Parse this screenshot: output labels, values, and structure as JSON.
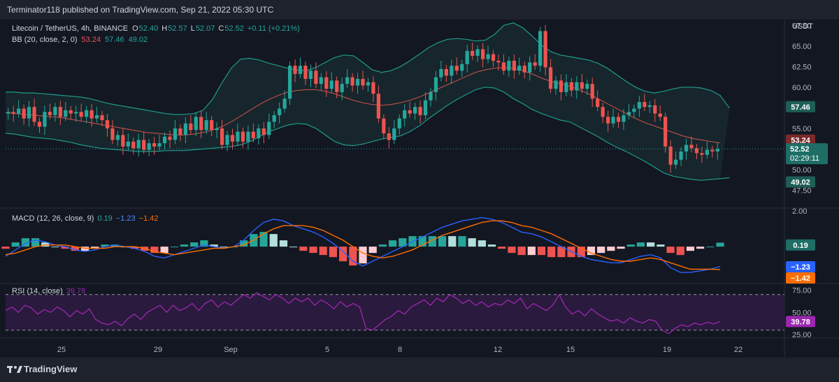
{
  "header": {
    "publisher": "Terminator118 published on TradingView.com, Sep 21, 2022 05:30 UTC"
  },
  "footer": {
    "brand": "TradingView",
    "logo_icon": "tradingview-logo-icon"
  },
  "colors": {
    "up": "#26a69a",
    "down": "#ef5350",
    "bb_basis": "#b74b4b",
    "bb_band": "#1f9a8a",
    "macd_line": "#2962ff",
    "signal_line": "#ff6d00",
    "rsi": "#9c27b0",
    "rsi_fill": "#2a1a3d"
  },
  "chart_data": {
    "type": "candlestick",
    "legend": {
      "symbol": "Litecoin / TetherUS, 4h, BINANCE",
      "o_label": "O",
      "o": "52.40",
      "h_label": "H",
      "h": "52.57",
      "l_label": "L",
      "l": "52.07",
      "c_label": "C",
      "c": "52.52",
      "change": "+0.11 (+0.21%)",
      "bb_label": "BB (20, close, 2, 0)",
      "bb_basis": "53.24",
      "bb_upper": "57.46",
      "bb_lower": "49.02"
    },
    "price_axis": {
      "unit": "USDT",
      "ticks": [
        "67.50",
        "65.00",
        "62.50",
        "60.00",
        "55.00",
        "50.00",
        "47.50"
      ],
      "ylim": [
        45.5,
        68.2
      ],
      "badges": {
        "upper": "57.46",
        "basis": "53.24",
        "last": "52.52",
        "countdown": "02:29:11",
        "lower": "49.02"
      }
    },
    "x_axis": {
      "labels": [
        "25",
        "29",
        "Sep",
        "5",
        "8",
        "12",
        "15",
        "19",
        "22"
      ]
    },
    "price_series": {
      "close": [
        57.0,
        56.8,
        57.4,
        56.2,
        57.6,
        55.8,
        55.2,
        57.0,
        56.6,
        57.6,
        56.4,
        57.2,
        56.8,
        57.0,
        56.4,
        57.2,
        56.2,
        56.6,
        56.0,
        55.0,
        53.6,
        54.2,
        52.8,
        53.4,
        52.6,
        53.6,
        52.4,
        53.2,
        52.8,
        53.2,
        54.0,
        53.6,
        55.0,
        54.2,
        55.6,
        54.8,
        56.4,
        54.8,
        56.0,
        54.8,
        55.0,
        53.0,
        54.2,
        53.4,
        54.6,
        53.4,
        54.6,
        53.8,
        55.0,
        54.2,
        55.8,
        56.6,
        57.4,
        58.6,
        62.6,
        61.6,
        62.6,
        61.0,
        62.0,
        60.4,
        61.2,
        59.8,
        60.8,
        59.4,
        60.4,
        61.2,
        60.2,
        61.0,
        60.2,
        60.6,
        59.2,
        56.2,
        54.4,
        53.6,
        55.0,
        56.2,
        57.2,
        56.8,
        57.6,
        56.6,
        58.4,
        59.4,
        61.2,
        62.2,
        61.4,
        62.6,
        62.0,
        62.8,
        64.4,
        63.8,
        64.6,
        63.4,
        64.0,
        63.2,
        63.0,
        62.0,
        63.2,
        62.0,
        62.6,
        61.8,
        63.0,
        62.6,
        66.8,
        62.4,
        59.8,
        60.8,
        59.4,
        60.6,
        59.6,
        60.6,
        59.8,
        60.4,
        58.6,
        57.6,
        56.4,
        55.6,
        56.4,
        55.8,
        56.6,
        57.0,
        57.4,
        58.2,
        57.6,
        57.8,
        56.8,
        56.4,
        52.8,
        50.6,
        51.2,
        52.2,
        53.0,
        52.6,
        52.0,
        51.8,
        52.4,
        52.2,
        52.52
      ],
      "bb_basis": [
        56.9,
        56.8,
        56.7,
        56.6,
        56.5,
        56.4,
        56.3,
        56.1,
        55.9,
        55.7,
        55.5,
        55.3,
        55.1,
        54.9,
        54.7,
        54.5,
        54.4,
        54.3,
        54.2,
        54.2,
        54.3,
        54.5,
        54.8,
        55.2,
        55.8,
        56.5,
        57.2,
        57.9,
        58.5,
        59.0,
        59.4,
        59.6,
        59.7,
        59.7,
        59.5,
        59.2,
        58.8,
        58.4,
        58.1,
        57.9,
        57.8,
        57.9,
        58.1,
        58.4,
        58.8,
        59.3,
        59.8,
        60.3,
        60.8,
        61.3,
        61.8,
        62.1,
        62.3,
        62.4,
        62.3,
        62.0,
        61.6,
        61.1,
        60.7,
        60.4,
        60.1,
        59.7,
        59.2,
        58.6,
        58.0,
        57.4,
        56.8,
        56.2,
        55.7,
        55.3,
        54.9,
        54.5,
        54.1,
        53.8,
        53.6,
        53.4,
        53.24
      ],
      "bb_upper": [
        59.4,
        59.4,
        59.3,
        59.3,
        59.2,
        59.1,
        59.0,
        58.9,
        58.8,
        58.6,
        58.3,
        58.0,
        57.8,
        57.6,
        57.4,
        57.2,
        57.0,
        56.8,
        56.7,
        56.7,
        56.8,
        57.2,
        58.5,
        60.5,
        62.3,
        63.4,
        63.5,
        63.3,
        62.9,
        62.6,
        62.3,
        62.1,
        62.0,
        62.4,
        63.0,
        63.6,
        63.9,
        63.8,
        63.0,
        62.1,
        61.8,
        62.0,
        62.5,
        63.2,
        64.0,
        64.8,
        65.4,
        65.8,
        65.9,
        65.8,
        65.6,
        65.7,
        66.4,
        67.5,
        67.8,
        67.2,
        66.2,
        65.1,
        64.3,
        63.9,
        63.7,
        63.5,
        63.3,
        62.9,
        62.3,
        61.5,
        60.7,
        60.0,
        59.5,
        59.3,
        59.5,
        59.8,
        60.0,
        60.0,
        59.9,
        59.6,
        59.0,
        57.46
      ],
      "bb_lower": [
        54.4,
        54.3,
        54.1,
        53.9,
        53.8,
        53.7,
        53.5,
        53.3,
        53.0,
        52.8,
        52.6,
        52.5,
        52.4,
        52.3,
        52.2,
        52.2,
        52.2,
        52.3,
        52.3,
        52.3,
        52.4,
        52.5,
        52.6,
        52.7,
        52.8,
        53.0,
        53.4,
        54.0,
        54.6,
        55.0,
        55.4,
        55.6,
        55.5,
        55.0,
        54.2,
        53.4,
        53.0,
        52.9,
        53.1,
        53.4,
        53.7,
        53.9,
        54.1,
        54.6,
        55.3,
        56.2,
        57.0,
        57.8,
        58.5,
        59.1,
        59.7,
        60.0,
        59.9,
        59.4,
        58.6,
        58.0,
        57.3,
        56.8,
        56.4,
        56.0,
        55.8,
        55.2,
        54.6,
        54.0,
        53.3,
        52.7,
        52.2,
        51.6,
        51.0,
        50.3,
        49.6,
        49.2,
        49.0,
        48.8,
        48.7,
        48.8,
        48.9,
        49.02
      ]
    },
    "macd": {
      "label": "MACD (12, 26, close, 9)",
      "hist_value": "0.19",
      "macd_value": "−1.23",
      "signal_value": "−1.42",
      "axis_ticks": [
        "2.00"
      ],
      "badges": {
        "hist": "0.19",
        "macd": "−1.23",
        "signal": "−1.42"
      },
      "ylim": [
        -2.2,
        2.3
      ],
      "macd_line": [
        -0.6,
        -0.2,
        0.2,
        0.4,
        0.3,
        0.1,
        0.0,
        -0.2,
        -0.3,
        -0.2,
        0.0,
        0.1,
        0.0,
        -0.1,
        -0.3,
        -0.6,
        -0.7,
        -0.5,
        -0.3,
        -0.1,
        0.1,
        0.0,
        -0.1,
        0.0,
        0.4,
        1.0,
        1.5,
        1.7,
        1.6,
        1.3,
        1.1,
        0.9,
        0.6,
        0.2,
        -0.3,
        -0.9,
        -1.2,
        -0.9,
        -0.6,
        -0.3,
        0.0,
        0.3,
        0.6,
        0.9,
        1.2,
        1.4,
        1.6,
        1.7,
        1.8,
        1.7,
        1.5,
        1.2,
        0.9,
        0.8,
        0.6,
        0.3,
        0.0,
        -0.3,
        -0.6,
        -0.8,
        -0.9,
        -1.0,
        -1.0,
        -0.8,
        -0.6,
        -0.5,
        -0.7,
        -1.3,
        -1.6,
        -1.6,
        -1.5,
        -1.4,
        -1.23
      ],
      "signal_line": [
        -0.5,
        -0.4,
        -0.2,
        0.0,
        0.1,
        0.1,
        0.1,
        0.0,
        -0.1,
        -0.1,
        -0.1,
        0.0,
        0.0,
        0.0,
        -0.1,
        -0.3,
        -0.4,
        -0.5,
        -0.4,
        -0.3,
        -0.2,
        -0.1,
        -0.1,
        0.0,
        0.1,
        0.4,
        0.8,
        1.1,
        1.3,
        1.3,
        1.3,
        1.2,
        1.0,
        0.7,
        0.4,
        0.0,
        -0.4,
        -0.6,
        -0.7,
        -0.6,
        -0.4,
        -0.2,
        0.1,
        0.4,
        0.7,
        0.9,
        1.1,
        1.3,
        1.5,
        1.6,
        1.6,
        1.5,
        1.3,
        1.2,
        1.0,
        0.8,
        0.5,
        0.2,
        -0.1,
        -0.4,
        -0.6,
        -0.8,
        -0.9,
        -0.9,
        -0.8,
        -0.7,
        -0.8,
        -1.0,
        -1.2,
        -1.4,
        -1.4,
        -1.4,
        -1.42
      ]
    },
    "rsi": {
      "label": "RSI (14, close)",
      "value": "39.78",
      "axis_ticks": [
        "75.00",
        "50.00",
        "25.00"
      ],
      "ylim": [
        22,
        80
      ],
      "bands": [
        70,
        30
      ],
      "values": [
        52,
        56,
        50,
        58,
        55,
        48,
        53,
        50,
        56,
        52,
        45,
        52,
        48,
        54,
        42,
        38,
        36,
        40,
        35,
        43,
        48,
        42,
        50,
        54,
        58,
        50,
        58,
        52,
        55,
        60,
        52,
        60,
        64,
        56,
        62,
        58,
        64,
        70,
        66,
        72,
        68,
        64,
        70,
        66,
        60,
        66,
        62,
        66,
        58,
        64,
        60,
        54,
        62,
        56,
        60,
        56,
        32,
        30,
        36,
        42,
        46,
        52,
        48,
        56,
        60,
        64,
        58,
        66,
        62,
        70,
        66,
        60,
        64,
        58,
        62,
        56,
        60,
        58,
        64,
        60,
        66,
        54,
        60,
        56,
        52,
        58,
        70,
        56,
        48,
        52,
        46,
        54,
        48,
        44,
        40,
        42,
        38,
        44,
        40,
        38,
        42,
        40,
        30,
        26,
        32,
        36,
        34,
        38,
        36,
        39,
        37,
        39.78
      ]
    }
  }
}
